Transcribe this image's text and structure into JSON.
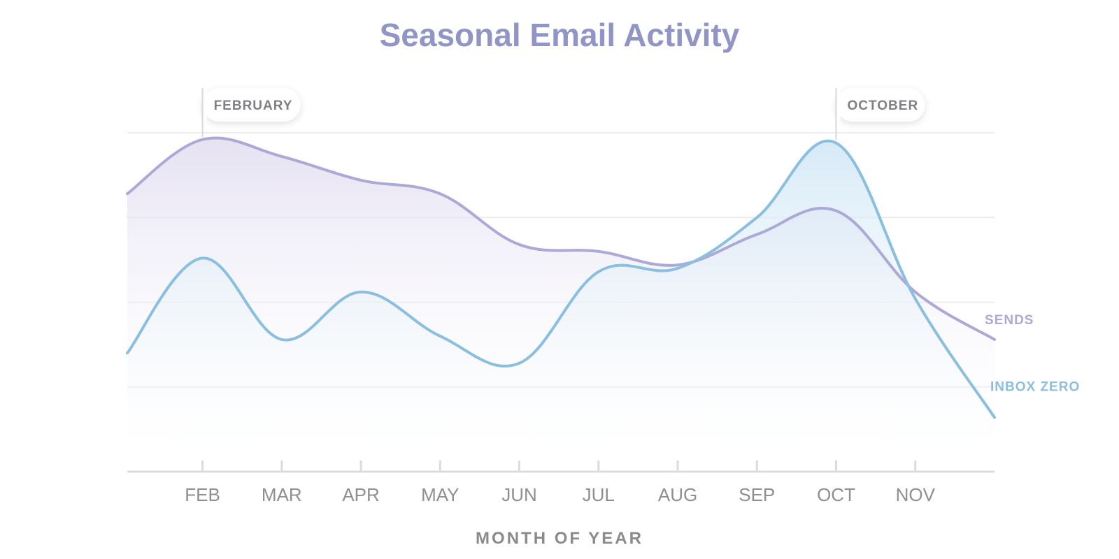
{
  "chart_data": {
    "type": "area",
    "title": "Seasonal Email Activity",
    "xlabel": "MONTH OF YEAR",
    "ylabel": "",
    "x": [
      1.05,
      2,
      3,
      4,
      5,
      6,
      7,
      8,
      9,
      10,
      11,
      12.0
    ],
    "categories": [
      "FEB",
      "MAR",
      "APR",
      "MAY",
      "JUN",
      "JUL",
      "AUG",
      "SEP",
      "OCT",
      "NOV"
    ],
    "category_positions": [
      2,
      3,
      4,
      5,
      6,
      7,
      8,
      9,
      10,
      11
    ],
    "xlim": [
      1.05,
      12.0
    ],
    "ylim": [
      0,
      100
    ],
    "grid": true,
    "series": [
      {
        "name": "SENDS",
        "label": "SENDS",
        "color": "#ada9d6",
        "values": [
          82,
          98,
          93,
          86,
          82,
          67,
          65,
          61,
          70,
          77,
          53,
          39
        ]
      },
      {
        "name": "INBOX ZERO",
        "label": "INBOX ZERO",
        "color": "#8bbfdf",
        "values": [
          35,
          63,
          39,
          53,
          40,
          32,
          59,
          60,
          75,
          97,
          51,
          16
        ]
      }
    ],
    "annotations": [
      {
        "label": "FEBRUARY",
        "x": 2,
        "y": 98
      },
      {
        "label": "OCTOBER",
        "x": 10,
        "y": 97
      }
    ]
  },
  "style": {
    "title_color": "#9095c6",
    "grid_color": "#ececef",
    "axis_color": "#dcdcdf",
    "annotation_line_color": "#d8d8dc",
    "sends_fill_top": "#ddd8ee",
    "inbox_fill_top": "#cfe6f5"
  }
}
